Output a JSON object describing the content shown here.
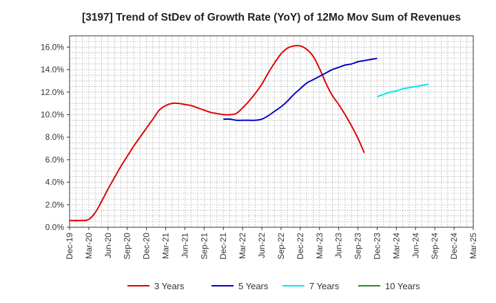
{
  "chart_data": {
    "type": "line",
    "title": "[3197]  Trend of StDev of Growth Rate (YoY) of 12Mo Mov Sum of Revenues",
    "xlabel": "",
    "ylabel": "",
    "x_tick_labels": [
      "Dec-19",
      "Mar-20",
      "Jun-20",
      "Sep-20",
      "Dec-20",
      "Mar-21",
      "Jun-21",
      "Sep-21",
      "Dec-21",
      "Mar-22",
      "Jun-22",
      "Sep-22",
      "Dec-22",
      "Mar-23",
      "Jun-23",
      "Sep-23",
      "Dec-23",
      "Mar-24",
      "Jun-24",
      "Sep-24",
      "Dec-24",
      "Mar-25"
    ],
    "y_tick_labels": [
      "0.0%",
      "2.0%",
      "4.0%",
      "6.0%",
      "8.0%",
      "10.0%",
      "12.0%",
      "14.0%",
      "16.0%"
    ],
    "ylim": [
      0,
      17
    ],
    "grid": true,
    "legend_position": "bottom",
    "series": [
      {
        "name": "3 Years",
        "color": "#dd0000",
        "values": [
          0.6,
          0.6,
          0.6,
          0.7,
          1.3,
          2.3,
          3.4,
          4.4,
          5.4,
          6.3,
          7.2,
          8.0,
          8.8,
          9.6,
          10.4,
          10.8,
          11.0,
          11.0,
          10.9,
          10.8,
          10.6,
          10.4,
          10.2,
          10.1,
          10.0,
          10.0,
          10.1,
          10.6,
          11.2,
          11.9,
          12.7,
          13.7,
          14.6,
          15.4,
          15.9,
          16.1,
          16.1,
          15.8,
          15.2,
          14.1,
          12.8,
          11.7,
          10.9,
          10.0,
          9.0,
          7.9,
          6.6
        ],
        "start_index": 0
      },
      {
        "name": "5 Years",
        "color": "#0000cc",
        "values": [
          9.6,
          9.6,
          9.5,
          9.5,
          9.5,
          9.5,
          9.6,
          9.9,
          10.3,
          10.7,
          11.2,
          11.8,
          12.3,
          12.8,
          13.1,
          13.4,
          13.7,
          14.0,
          14.2,
          14.4,
          14.5,
          14.7,
          14.8,
          14.9,
          15.0
        ],
        "start_index": 24
      },
      {
        "name": "7 Years",
        "color": "#00e5ee",
        "values": [
          11.6,
          11.8,
          12.0,
          12.1,
          12.3,
          12.4,
          12.5,
          12.6,
          12.7
        ],
        "start_index": 48
      },
      {
        "name": "10 Years",
        "color": "#228b22",
        "values": [],
        "start_index": 0
      }
    ]
  }
}
